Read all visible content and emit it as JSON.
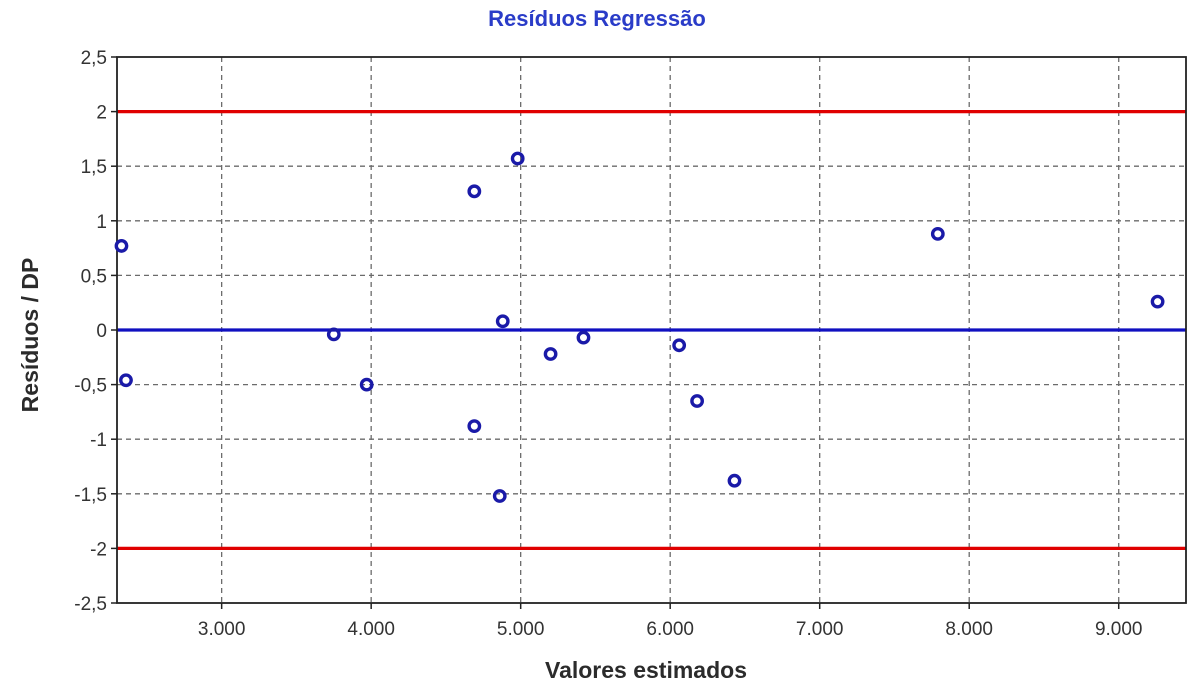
{
  "chart_data": {
    "type": "scatter",
    "title": "Resíduos Regressão",
    "xlabel": "Valores estimados",
    "ylabel": "Resíduos / DP",
    "xlim": [
      2300,
      9450
    ],
    "ylim": [
      -2.5,
      2.5
    ],
    "x_ticks": [
      3000,
      4000,
      5000,
      6000,
      7000,
      8000,
      9000
    ],
    "x_tick_labels": [
      "3.000",
      "4.000",
      "5.000",
      "6.000",
      "7.000",
      "8.000",
      "9.000"
    ],
    "y_ticks": [
      2.5,
      2,
      1.5,
      1,
      0.5,
      0,
      -0.5,
      -1,
      -1.5,
      -2,
      -2.5
    ],
    "y_tick_labels": [
      "2,5",
      "2",
      "1,5",
      "1",
      "0,5",
      "0",
      "-0,5",
      "-1",
      "-1,5",
      "-2",
      "-2,5"
    ],
    "grid": true,
    "reference_lines": [
      {
        "y": 2,
        "color": "#e00000"
      },
      {
        "y": 0,
        "color": "#1010c0"
      },
      {
        "y": -2,
        "color": "#e00000"
      }
    ],
    "series": [
      {
        "marker_color": "#1a1aa8",
        "points": [
          {
            "x": 2330,
            "y": 0.77
          },
          {
            "x": 2360,
            "y": -0.46
          },
          {
            "x": 3750,
            "y": -0.04
          },
          {
            "x": 3970,
            "y": -0.5
          },
          {
            "x": 4690,
            "y": 1.27
          },
          {
            "x": 4690,
            "y": -0.88
          },
          {
            "x": 4860,
            "y": -1.52
          },
          {
            "x": 4880,
            "y": 0.08
          },
          {
            "x": 4980,
            "y": 1.57
          },
          {
            "x": 5200,
            "y": -0.22
          },
          {
            "x": 5420,
            "y": -0.07
          },
          {
            "x": 6060,
            "y": -0.14
          },
          {
            "x": 6180,
            "y": -0.65
          },
          {
            "x": 6430,
            "y": -1.38
          },
          {
            "x": 7790,
            "y": 0.88
          },
          {
            "x": 9260,
            "y": 0.26
          }
        ]
      }
    ],
    "colors": {
      "title": "#2a3cc8",
      "grid": "#6b6b6b",
      "frame": "#222222"
    }
  }
}
